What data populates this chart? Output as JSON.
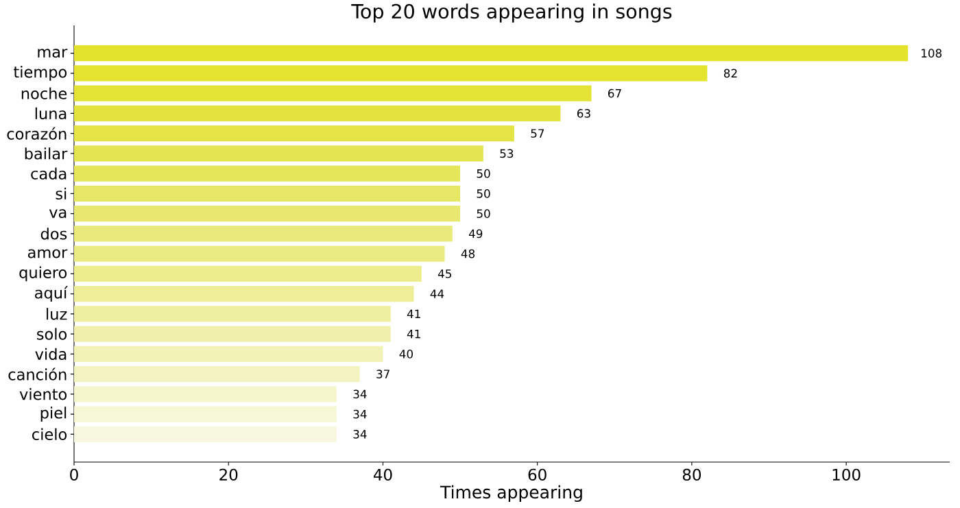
{
  "chart_data": {
    "type": "bar",
    "orientation": "horizontal",
    "title": "Top 20 words appearing in songs",
    "xlabel": "Times appearing",
    "categories": [
      "mar",
      "tiempo",
      "noche",
      "luna",
      "corazón",
      "bailar",
      "cada",
      "si",
      "va",
      "dos",
      "amor",
      "quiero",
      "aquí",
      "luz",
      "solo",
      "vida",
      "canción",
      "viento",
      "piel",
      "cielo"
    ],
    "values": [
      108,
      82,
      67,
      63,
      57,
      53,
      50,
      50,
      50,
      49,
      48,
      45,
      44,
      41,
      41,
      40,
      37,
      34,
      34,
      34
    ],
    "colors": [
      "#e3e32d",
      "#e3e330",
      "#e3e335",
      "#e3e33d",
      "#e4e446",
      "#e4e450",
      "#e6e65b",
      "#e7e766",
      "#e8e870",
      "#eaea7a",
      "#ebeb84",
      "#eded8e",
      "#eeee98",
      "#efefa2",
      "#f0f0ac",
      "#f2f2b6",
      "#f3f3c0",
      "#f5f6cb",
      "#f6f7d5",
      "#f7f8df"
    ],
    "xlim": [
      0,
      113.4
    ],
    "xticks": [
      0,
      20,
      40,
      60,
      80,
      100
    ],
    "data_labels": true
  }
}
